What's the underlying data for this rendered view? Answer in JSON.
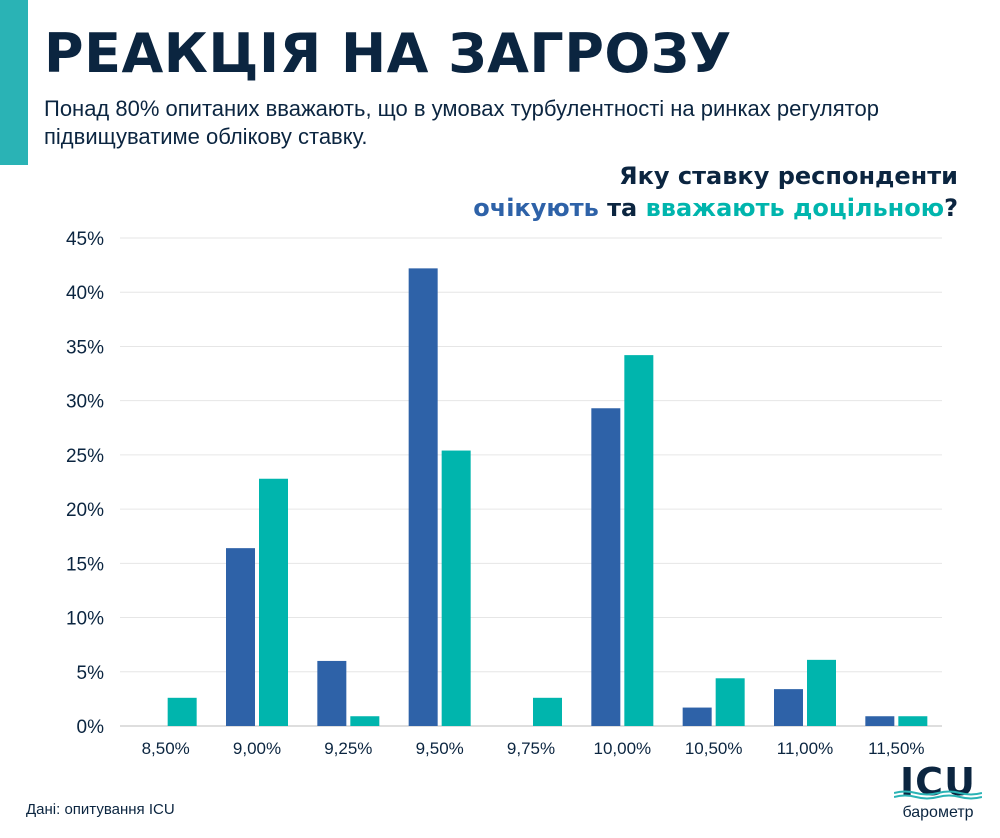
{
  "header": {
    "title": "РЕАКЦІЯ НА ЗАГРОЗУ",
    "subtitle": "Понад 80% опитаних вважають, що в умовах турбулентності на ринках регулятор підвищуватиме облікову ставку.",
    "question_line1": "Яку ставку респонденти",
    "question_expect": "очікують",
    "question_and": " та ",
    "question_advisable": "вважають доцільною",
    "question_mark": "?"
  },
  "footer": {
    "source": "Дані: опитування ICU",
    "logo_text": "ICU",
    "logo_sub": "барометр"
  },
  "colors": {
    "expect": "#2e62a8",
    "advisable": "#00b5ad",
    "accent": "#2ab3b5",
    "text": "#0b2540",
    "grid": "#e6e6e6"
  },
  "chart_data": {
    "type": "bar",
    "title": "Яку ставку респонденти очікують та вважають доцільною?",
    "categories": [
      "8,50%",
      "9,00%",
      "9,25%",
      "9,50%",
      "9,75%",
      "10,00%",
      "10,50%",
      "11,00%",
      "11,50%"
    ],
    "series": [
      {
        "name": "очікують",
        "color": "#2e62a8",
        "values": [
          0,
          16.4,
          6.0,
          42.2,
          0,
          29.3,
          1.7,
          3.4,
          0.9
        ]
      },
      {
        "name": "вважають доцільною",
        "color": "#00b5ad",
        "values": [
          2.6,
          22.8,
          0.9,
          25.4,
          2.6,
          34.2,
          4.4,
          6.1,
          0.9
        ]
      }
    ],
    "ylim": [
      0,
      45
    ],
    "yticks": [
      "0%",
      "5%",
      "10%",
      "15%",
      "20%",
      "25%",
      "30%",
      "35%",
      "40%",
      "45%"
    ],
    "xlabel": "",
    "ylabel": "",
    "grid": true
  }
}
